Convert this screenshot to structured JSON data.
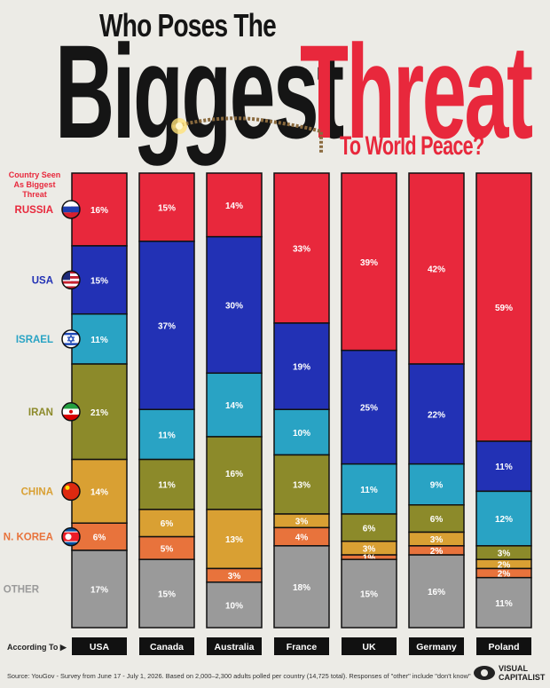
{
  "title": {
    "line1": "Who Poses The",
    "line2a": "Biggest",
    "line2b": "Threat",
    "line3": "To World Peace?"
  },
  "axis_heading": "Country Seen As Biggest Threat",
  "according_to": "According To",
  "source": "Source: YouGov - Survey from June 17 - July 1, 2026. Based on 2,000–2,300 adults polled per country (14,725 total). Responses of \"other\" include \"don't know\"",
  "brand": {
    "line1": "VISUAL",
    "line2": "CAPITALIST"
  },
  "colors": {
    "Russia": "#e8283c",
    "USA": "#2231b5",
    "Israel": "#29a3c4",
    "Iran": "#8c8a2a",
    "China": "#d9a033",
    "N. Korea": "#e8733c",
    "Other": "#9a9a9a",
    "label_dark": "#111111",
    "title_red": "#e8283c"
  },
  "chart_data": {
    "type": "bar",
    "stacked": true,
    "normalized": true,
    "categories": [
      "USA",
      "Canada",
      "Australia",
      "France",
      "UK",
      "Germany",
      "Poland"
    ],
    "series": [
      {
        "name": "RUSSIA",
        "values": [
          16,
          15,
          14,
          33,
          39,
          42,
          59
        ]
      },
      {
        "name": "USA",
        "values": [
          15,
          37,
          30,
          19,
          25,
          22,
          11
        ]
      },
      {
        "name": "ISRAEL",
        "values": [
          11,
          11,
          14,
          10,
          11,
          9,
          12
        ]
      },
      {
        "name": "IRAN",
        "values": [
          21,
          11,
          16,
          13,
          6,
          6,
          3
        ]
      },
      {
        "name": "CHINA",
        "values": [
          14,
          6,
          13,
          3,
          3,
          3,
          2
        ]
      },
      {
        "name": "N. KOREA",
        "values": [
          6,
          5,
          3,
          4,
          1,
          2,
          2
        ]
      },
      {
        "name": "OTHER",
        "values": [
          17,
          15,
          10,
          18,
          15,
          16,
          11
        ]
      }
    ],
    "series_icons": [
      "russia-flag-icon",
      "usa-flag-icon",
      "israel-flag-icon",
      "iran-flag-icon",
      "china-flag-icon",
      "north-korea-flag-icon",
      ""
    ],
    "label_suffix": "%"
  }
}
